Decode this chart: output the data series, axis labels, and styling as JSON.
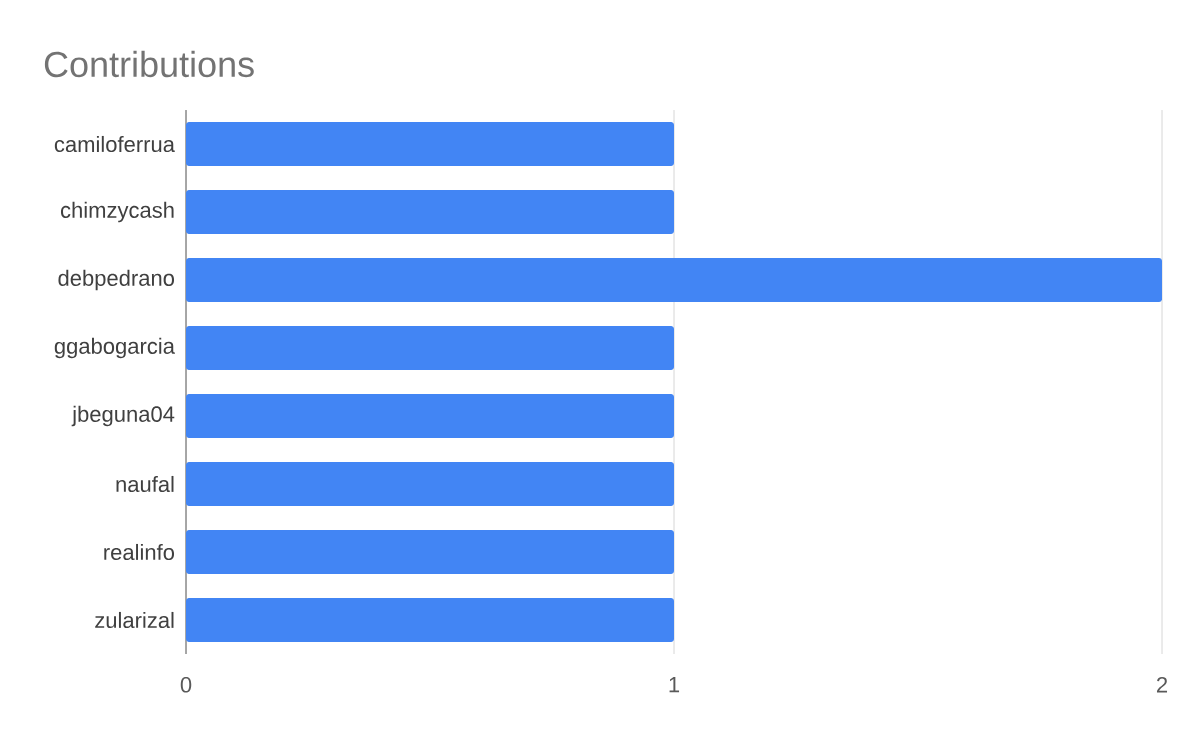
{
  "chart_data": {
    "type": "bar",
    "orientation": "horizontal",
    "title": "Contributions",
    "categories": [
      "camiloferrua",
      "chimzycash",
      "debpedrano",
      "ggabogarcia",
      "jbeguna04",
      "naufal",
      "realinfo",
      "zularizal"
    ],
    "values": [
      1,
      1,
      2,
      1,
      1,
      1,
      1,
      1
    ],
    "color": "#4285f4",
    "xlim": [
      0,
      2
    ],
    "xticks": [
      0,
      1,
      2
    ],
    "grid": "x"
  }
}
